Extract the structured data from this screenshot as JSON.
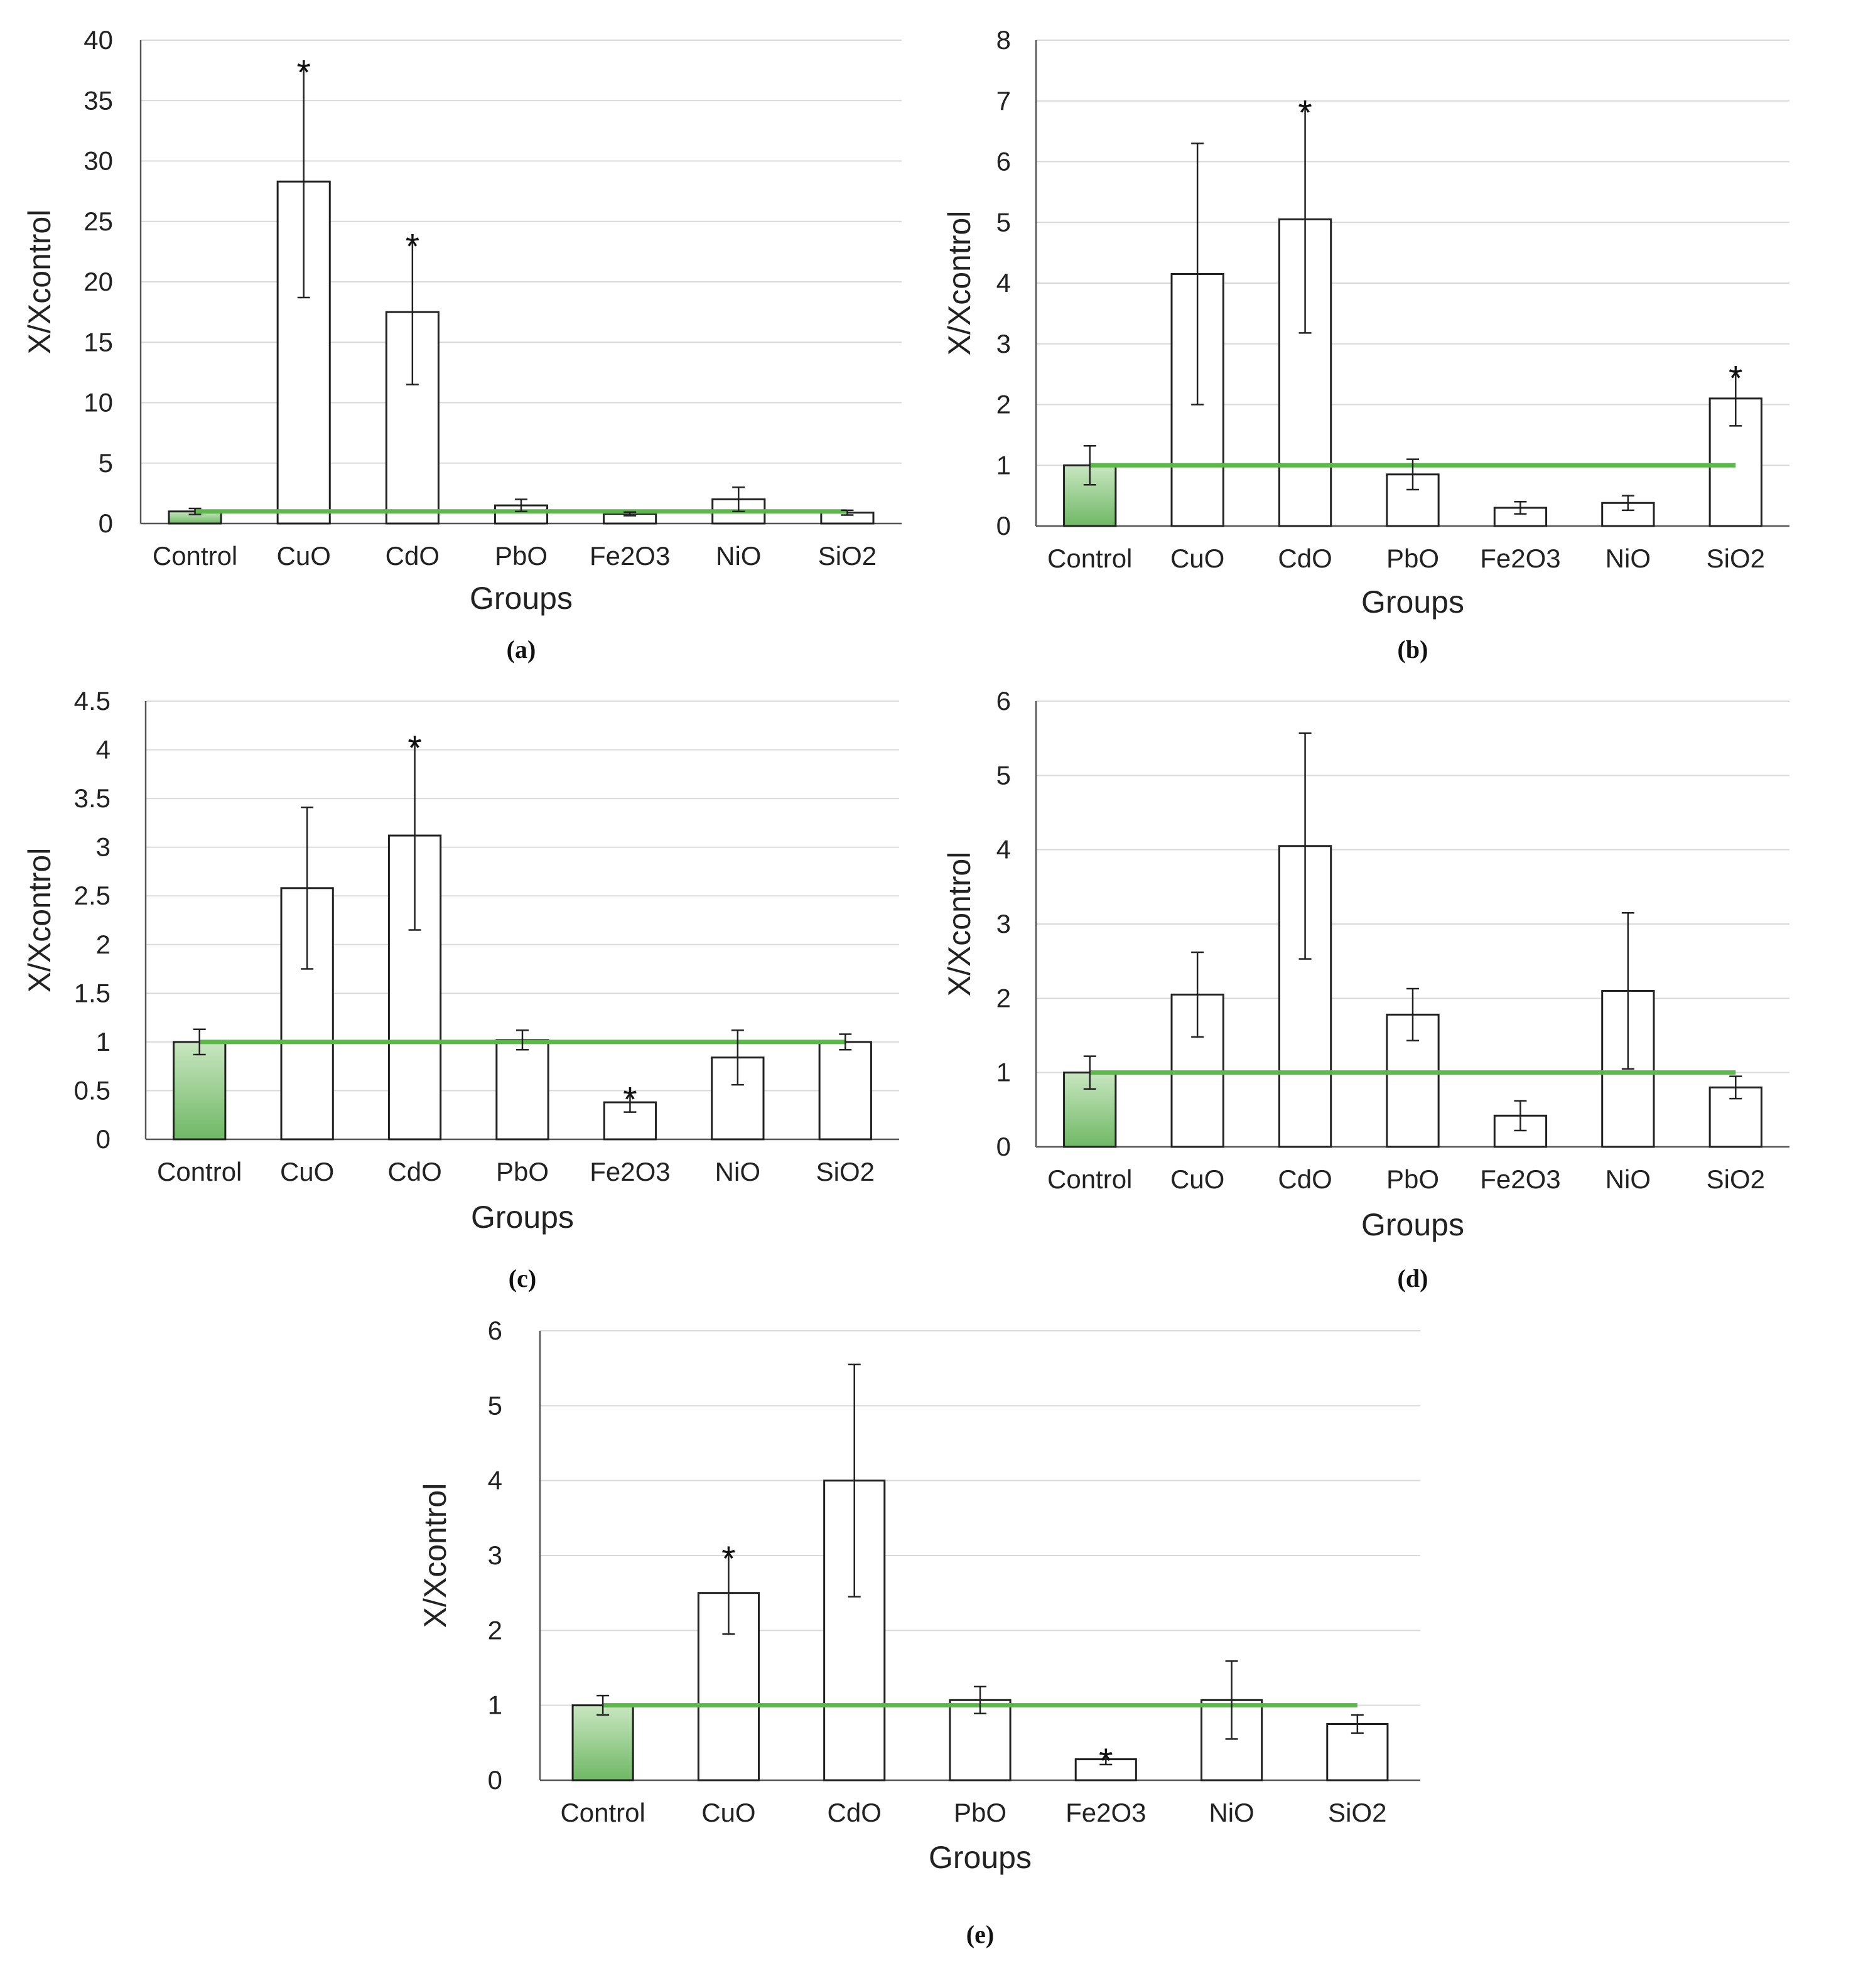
{
  "chart_data": [
    {
      "panel": "(a)",
      "type": "bar",
      "categories": [
        "Control",
        "CuO",
        "CdO",
        "PbO",
        "Fe2O3",
        "NiO",
        "SiO2"
      ],
      "values": [
        1,
        28.3,
        17.5,
        1.5,
        0.8,
        2.0,
        0.9
      ],
      "errors": [
        0.25,
        9.6,
        6.0,
        0.5,
        0.15,
        1.0,
        0.2
      ],
      "significant": [
        "CuO",
        "CdO"
      ],
      "reference_line": 1,
      "xlabel": "Groups",
      "ylabel": "X/Xcontrol",
      "ylim": [
        0,
        40
      ],
      "yticks": [
        "0",
        "5",
        "10",
        "15",
        "20",
        "25",
        "30",
        "35",
        "40"
      ],
      "grid": true
    },
    {
      "panel": "(b)",
      "type": "bar",
      "categories": [
        "Control",
        "CuO",
        "CdO",
        "PbO",
        "Fe2O3",
        "NiO",
        "SiO2"
      ],
      "values": [
        1,
        4.15,
        5.05,
        0.85,
        0.3,
        0.38,
        2.1
      ],
      "errors": [
        0.32,
        2.15,
        1.87,
        0.25,
        0.1,
        0.12,
        0.45
      ],
      "significant": [
        "CdO",
        "SiO2"
      ],
      "reference_line": 1,
      "xlabel": "Groups",
      "ylabel": "X/Xcontrol",
      "ylim": [
        0,
        8
      ],
      "yticks": [
        "0",
        "1",
        "2",
        "3",
        "4",
        "5",
        "6",
        "7",
        "8"
      ],
      "grid": true
    },
    {
      "panel": "(c)",
      "type": "bar",
      "categories": [
        "Control",
        "CuO",
        "CdO",
        "PbO",
        "Fe2O3",
        "NiO",
        "SiO2"
      ],
      "values": [
        1,
        2.58,
        3.12,
        1.02,
        0.38,
        0.84,
        1.0
      ],
      "errors": [
        0.13,
        0.83,
        0.97,
        0.1,
        0.1,
        0.28,
        0.08
      ],
      "significant": [
        "CdO",
        "Fe2O3"
      ],
      "reference_line": 1,
      "xlabel": "Groups",
      "ylabel": "X/Xcontrol",
      "ylim": [
        0,
        4.5
      ],
      "yticks": [
        "0",
        "0.5",
        "1",
        "1.5",
        "2",
        "2.5",
        "3",
        "3.5",
        "4",
        "4.5"
      ],
      "grid": true
    },
    {
      "panel": "(d)",
      "type": "bar",
      "categories": [
        "Control",
        "CuO",
        "CdO",
        "PbO",
        "Fe2O3",
        "NiO",
        "SiO2"
      ],
      "values": [
        1,
        2.05,
        4.05,
        1.78,
        0.42,
        2.1,
        0.8
      ],
      "errors": [
        0.22,
        0.57,
        1.52,
        0.35,
        0.2,
        1.05,
        0.15
      ],
      "significant": [],
      "reference_line": 1,
      "xlabel": "Groups",
      "ylabel": "X/Xcontrol",
      "ylim": [
        0,
        6
      ],
      "yticks": [
        "0",
        "1",
        "2",
        "3",
        "4",
        "5",
        "6"
      ],
      "grid": true
    },
    {
      "panel": "(e)",
      "type": "bar",
      "categories": [
        "Control",
        "CuO",
        "CdO",
        "PbO",
        "Fe2O3",
        "NiO",
        "SiO2"
      ],
      "values": [
        1,
        2.5,
        4.0,
        1.07,
        0.28,
        1.07,
        0.75
      ],
      "errors": [
        0.13,
        0.55,
        1.55,
        0.18,
        0.07,
        0.52,
        0.12
      ],
      "significant": [
        "CuO",
        "Fe2O3"
      ],
      "reference_line": 1,
      "xlabel": "Groups",
      "ylabel": "X/Xcontrol",
      "ylim": [
        0,
        6
      ],
      "yticks": [
        "0",
        "1",
        "2",
        "3",
        "4",
        "5",
        "6"
      ],
      "grid": true
    }
  ],
  "colors": {
    "control_fill_top": "#c9e6c1",
    "control_fill_bottom": "#6fb865",
    "reference_line": "#5cb84a",
    "bar_outline": "#222222",
    "gridline": "#d9d9d9",
    "axis": "#555555"
  }
}
